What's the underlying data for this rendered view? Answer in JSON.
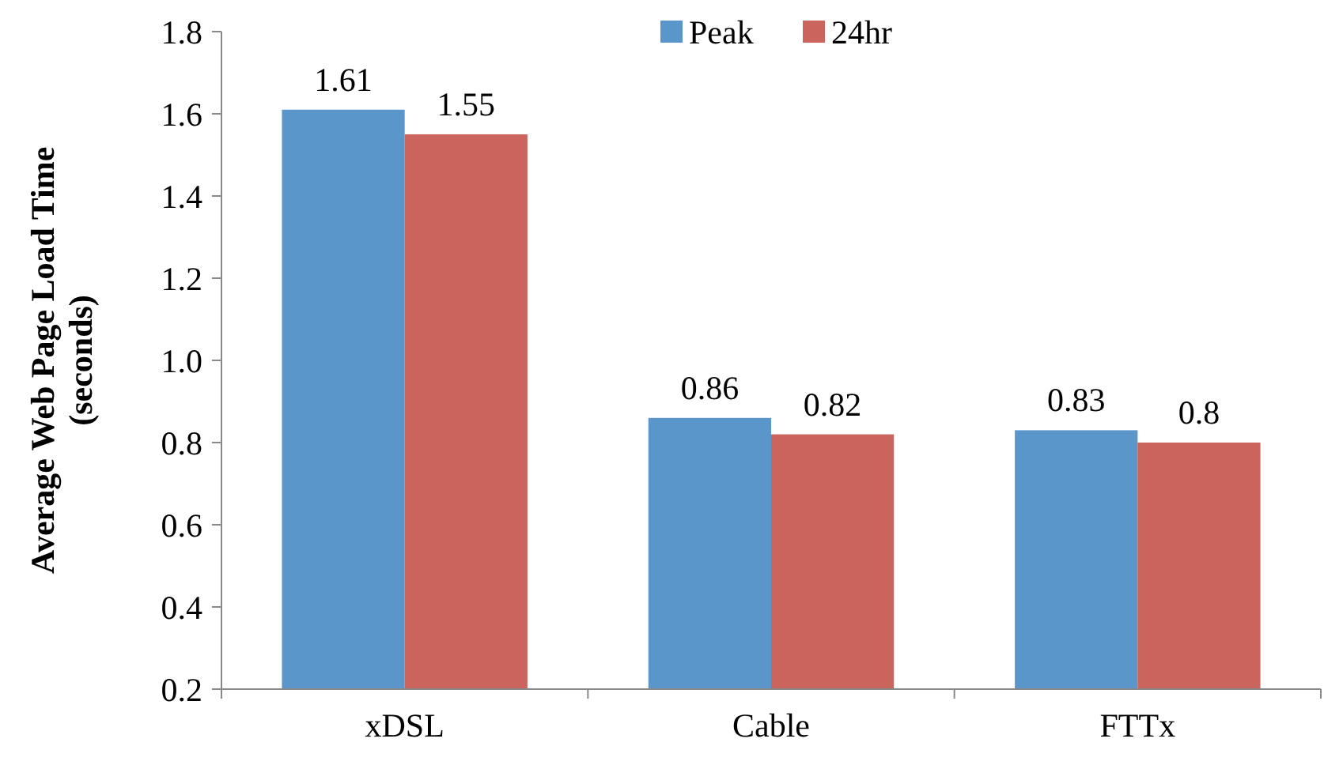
{
  "chart_data": {
    "type": "bar",
    "ylabel": "Average Web Page Load Time (seconds)",
    "categories": [
      "xDSL",
      "Cable",
      "FTTx"
    ],
    "series": [
      {
        "name": "Peak",
        "color": "#5b96cb",
        "values": [
          1.61,
          0.86,
          0.83
        ]
      },
      {
        "name": "24hr",
        "color": "#cb645d",
        "values": [
          1.55,
          0.82,
          0.8
        ]
      }
    ],
    "ylim": [
      0.2,
      1.8
    ],
    "yticks": [
      0.2,
      0.4,
      0.6,
      0.8,
      {
        "value": 1,
        "label": "1.0"
      },
      1.2,
      1.4,
      1.6,
      1.8
    ],
    "data_labels": true,
    "legend": "top",
    "grid": false
  }
}
